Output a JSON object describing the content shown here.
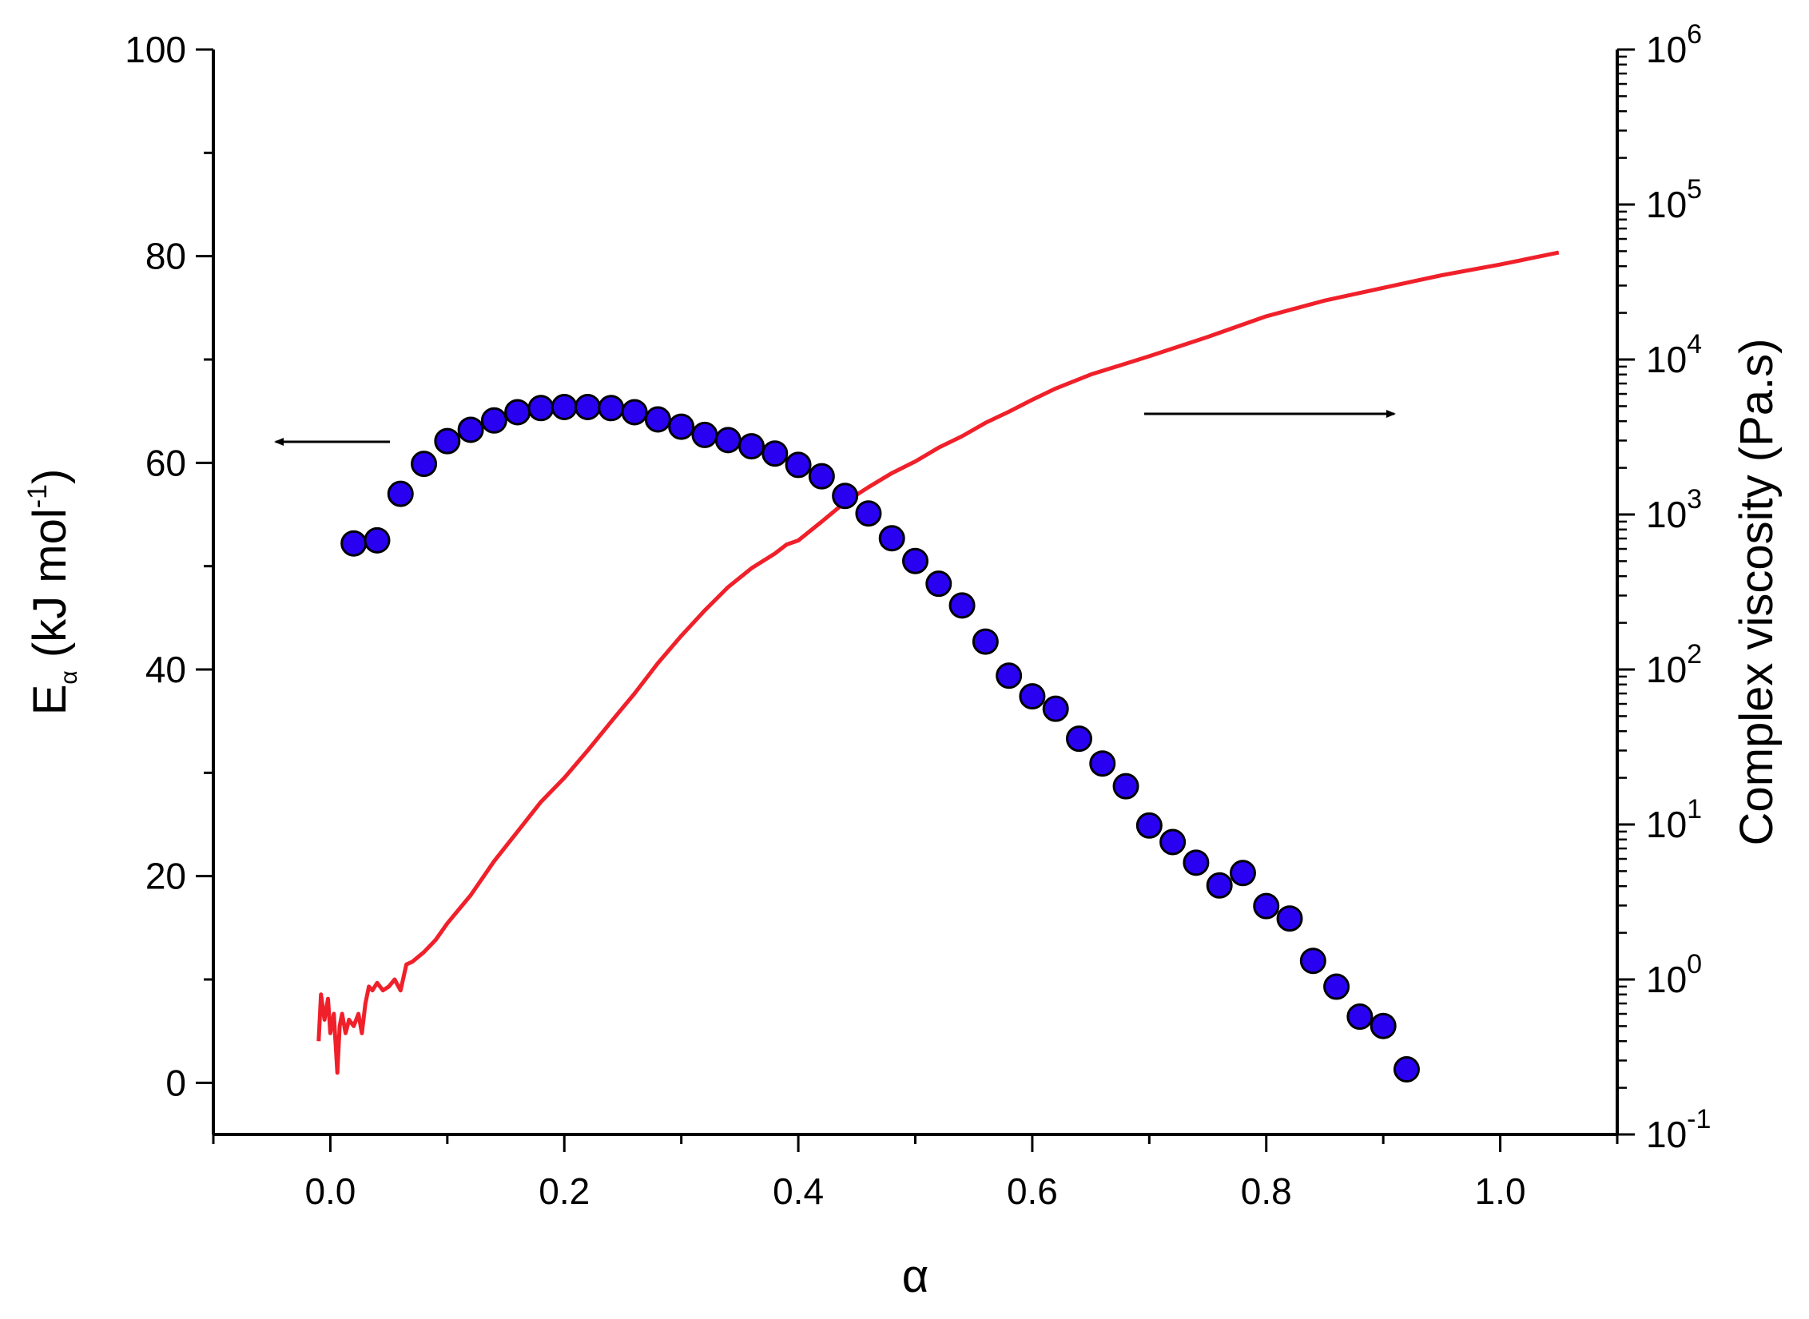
{
  "chart_data": {
    "type": "scatter",
    "xlabel": "α",
    "ylabel_left": {
      "main": "E",
      "sub": "α",
      "unit_pre": " (kJ mol",
      "unit_sup": "-1",
      "unit_post": ")"
    },
    "ylabel_right": "Complex viscosity (Pa.s)",
    "xlim": [
      -0.1,
      1.1
    ],
    "ylim_left": [
      -5,
      100
    ],
    "ylim_right_log10": [
      -1,
      6
    ],
    "x_ticks": [
      0.0,
      0.2,
      0.4,
      0.6,
      0.8,
      1.0
    ],
    "x_tick_labels": [
      "0.0",
      "0.2",
      "0.4",
      "0.6",
      "0.8",
      "1.0"
    ],
    "y_left_ticks": [
      0,
      20,
      40,
      60,
      80,
      100
    ],
    "y_left_tick_labels": [
      "0",
      "20",
      "40",
      "60",
      "80",
      "100"
    ],
    "y_right_tick_exponents": [
      -1,
      0,
      1,
      2,
      3,
      4,
      5,
      6
    ],
    "y_right_tick_base": "10",
    "grid": false,
    "legend": "none",
    "series": [
      {
        "axis": "left",
        "style": "markers",
        "color": "#2a00f0",
        "x": [
          0.02,
          0.04,
          0.06,
          0.08,
          0.1,
          0.12,
          0.14,
          0.16,
          0.18,
          0.2,
          0.22,
          0.24,
          0.26,
          0.28,
          0.3,
          0.32,
          0.34,
          0.36,
          0.38,
          0.4,
          0.42,
          0.44,
          0.46,
          0.48,
          0.5,
          0.52,
          0.54,
          0.56,
          0.58,
          0.6,
          0.62,
          0.64,
          0.66,
          0.68,
          0.7,
          0.72,
          0.74,
          0.76,
          0.78,
          0.8,
          0.82,
          0.84,
          0.86,
          0.88,
          0.9,
          0.92
        ],
        "y": [
          52.2,
          52.5,
          57.0,
          59.9,
          62.1,
          63.2,
          64.1,
          64.9,
          65.3,
          65.4,
          65.4,
          65.3,
          64.9,
          64.2,
          63.5,
          62.7,
          62.2,
          61.6,
          60.9,
          59.8,
          58.7,
          56.8,
          55.1,
          52.7,
          50.5,
          48.3,
          46.2,
          42.7,
          39.4,
          37.4,
          36.2,
          33.3,
          30.9,
          28.7,
          24.9,
          23.3,
          21.3,
          19.1,
          20.3,
          17.1,
          15.9,
          11.8,
          9.3,
          6.4,
          5.5,
          1.3
        ]
      },
      {
        "axis": "right",
        "style": "line",
        "color": "#f0202a",
        "x": [
          -0.01,
          -0.008,
          -0.005,
          -0.002,
          0.0,
          0.003,
          0.006,
          0.008,
          0.01,
          0.013,
          0.016,
          0.02,
          0.024,
          0.027,
          0.03,
          0.033,
          0.036,
          0.04,
          0.045,
          0.05,
          0.055,
          0.06,
          0.065,
          0.07,
          0.08,
          0.09,
          0.1,
          0.12,
          0.14,
          0.16,
          0.18,
          0.2,
          0.22,
          0.24,
          0.26,
          0.28,
          0.3,
          0.32,
          0.34,
          0.36,
          0.38,
          0.39,
          0.4,
          0.42,
          0.44,
          0.46,
          0.48,
          0.5,
          0.52,
          0.54,
          0.56,
          0.58,
          0.6,
          0.62,
          0.65,
          0.7,
          0.75,
          0.8,
          0.85,
          0.9,
          0.95,
          1.0,
          1.05
        ],
        "y": [
          0.4,
          0.8,
          0.55,
          0.75,
          0.45,
          0.6,
          0.25,
          0.5,
          0.6,
          0.45,
          0.55,
          0.5,
          0.6,
          0.45,
          0.7,
          0.9,
          0.85,
          0.95,
          0.85,
          0.9,
          1.0,
          0.85,
          1.25,
          1.3,
          1.5,
          1.8,
          2.3,
          3.5,
          5.8,
          9.0,
          14.0,
          20.0,
          30.0,
          46.0,
          70.0,
          110.0,
          165.0,
          240.0,
          340.0,
          450.0,
          560.0,
          640.0,
          680.0,
          900.0,
          1200.0,
          1500.0,
          1850.0,
          2200.0,
          2700.0,
          3200.0,
          3900.0,
          4600.0,
          5500.0,
          6500.0,
          8000.0,
          10500.0,
          14000.0,
          19000.0,
          24000.0,
          29000.0,
          35000.0,
          41000.0,
          49000.0
        ]
      }
    ],
    "annotations": [
      {
        "type": "arrow",
        "points_to": "left axis",
        "color": "#000000"
      },
      {
        "type": "arrow",
        "points_to": "right axis",
        "color": "#000000"
      }
    ]
  }
}
